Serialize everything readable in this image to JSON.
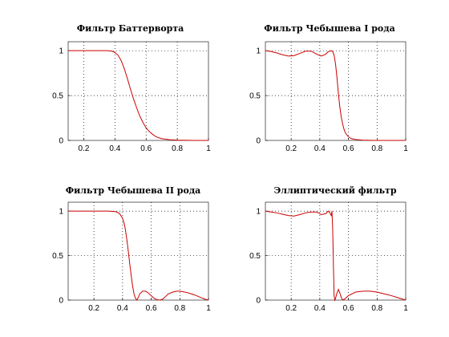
{
  "figure": {
    "background": "#ffffff",
    "line_color": "#cc0000"
  },
  "chart_data": [
    {
      "type": "line",
      "title": "Фильтр Баттерворта",
      "xlim": [
        0.1,
        1.0
      ],
      "ylim": [
        0,
        1.1
      ],
      "xticks": [
        0.2,
        0.4,
        0.6,
        0.8,
        1
      ],
      "xtick_labels": [
        "0.2",
        "0.4",
        "0.6",
        "0.8",
        "1"
      ],
      "yticks": [
        0,
        0.5,
        1
      ],
      "ytick_labels": [
        "0",
        "0.5",
        "1"
      ],
      "grid": true,
      "series": [
        {
          "x": [
            0.1,
            0.2,
            0.3,
            0.35,
            0.38,
            0.4,
            0.42,
            0.44,
            0.46,
            0.48,
            0.5,
            0.52,
            0.54,
            0.56,
            0.58,
            0.6,
            0.62,
            0.64,
            0.66,
            0.68,
            0.7,
            0.75,
            0.8,
            0.9,
            1.0
          ],
          "y": [
            1,
            1,
            1,
            1,
            0.995,
            0.98,
            0.95,
            0.89,
            0.8,
            0.69,
            0.57,
            0.46,
            0.36,
            0.27,
            0.2,
            0.14,
            0.1,
            0.07,
            0.045,
            0.03,
            0.02,
            0.008,
            0.003,
            0.0005,
            0
          ]
        }
      ]
    },
    {
      "type": "line",
      "title": "Фильтр Чебышева I рода",
      "xlim": [
        0.02,
        1.0
      ],
      "ylim": [
        0,
        1.1
      ],
      "xticks": [
        0.2,
        0.4,
        0.6,
        0.8,
        1
      ],
      "xtick_labels": [
        "0.2",
        "0.4",
        "0.6",
        "0.8",
        "1"
      ],
      "yticks": [
        0,
        0.5,
        1
      ],
      "ytick_labels": [
        "0",
        "0.5",
        "1"
      ],
      "grid": true,
      "series": [
        {
          "x": [
            0.02,
            0.06,
            0.1,
            0.14,
            0.18,
            0.22,
            0.26,
            0.3,
            0.34,
            0.38,
            0.41,
            0.44,
            0.46,
            0.48,
            0.49,
            0.5,
            0.51,
            0.52,
            0.53,
            0.54,
            0.55,
            0.56,
            0.57,
            0.58,
            0.6,
            0.62,
            0.65,
            0.7,
            0.75,
            0.8,
            0.9,
            1.0
          ],
          "y": [
            1,
            0.99,
            0.975,
            0.955,
            0.94,
            0.945,
            0.97,
            0.995,
            0.995,
            0.96,
            0.94,
            0.96,
            0.99,
            1.0,
            0.99,
            0.95,
            0.85,
            0.7,
            0.52,
            0.37,
            0.26,
            0.18,
            0.12,
            0.08,
            0.04,
            0.02,
            0.01,
            0.003,
            0.001,
            0.0005,
            0,
            0
          ]
        }
      ]
    },
    {
      "type": "line",
      "title": "Фильтр Чебышева II рода",
      "xlim": [
        0.02,
        1.0
      ],
      "ylim": [
        0,
        1.1
      ],
      "xticks": [
        0.2,
        0.4,
        0.6,
        0.8,
        1
      ],
      "xtick_labels": [
        "0.2",
        "0.4",
        "0.6",
        "0.8",
        "1"
      ],
      "yticks": [
        0,
        0.5,
        1
      ],
      "ytick_labels": [
        "0",
        "0.5",
        "1"
      ],
      "grid": true,
      "series": [
        {
          "x": [
            0.02,
            0.1,
            0.2,
            0.3,
            0.34,
            0.36,
            0.38,
            0.4,
            0.41,
            0.42,
            0.43,
            0.44,
            0.45,
            0.46,
            0.47,
            0.48,
            0.49,
            0.5,
            0.51,
            0.52,
            0.54,
            0.56,
            0.58,
            0.6,
            0.62,
            0.64,
            0.66,
            0.68,
            0.7,
            0.72,
            0.75,
            0.78,
            0.8,
            0.82,
            0.85,
            0.88,
            0.9,
            0.93,
            0.96,
            0.98,
            1.0
          ],
          "y": [
            1,
            1,
            1,
            1,
            0.995,
            0.99,
            0.97,
            0.92,
            0.87,
            0.79,
            0.68,
            0.55,
            0.41,
            0.28,
            0.16,
            0.07,
            0.02,
            0.0,
            0.03,
            0.07,
            0.1,
            0.1,
            0.08,
            0.05,
            0.02,
            0.005,
            0.0,
            0.01,
            0.04,
            0.07,
            0.09,
            0.1,
            0.1,
            0.095,
            0.085,
            0.07,
            0.06,
            0.04,
            0.02,
            0.008,
            0
          ]
        }
      ]
    },
    {
      "type": "line",
      "title": "Эллиптический фильтр",
      "xlim": [
        0.02,
        1.0
      ],
      "ylim": [
        0,
        1.1
      ],
      "xticks": [
        0.2,
        0.4,
        0.6,
        0.8,
        1
      ],
      "xtick_labels": [
        "0.2",
        "0.4",
        "0.6",
        "0.8",
        "1"
      ],
      "yticks": [
        0,
        0.5,
        1
      ],
      "ytick_labels": [
        "0",
        "0.5",
        "1"
      ],
      "grid": true,
      "series": [
        {
          "x": [
            0.02,
            0.06,
            0.1,
            0.14,
            0.18,
            0.22,
            0.26,
            0.3,
            0.34,
            0.38,
            0.41,
            0.44,
            0.46,
            0.47,
            0.48,
            0.485,
            0.49,
            0.495,
            0.5,
            0.505,
            0.51,
            0.52,
            0.53,
            0.54,
            0.55,
            0.56,
            0.58,
            0.6,
            0.65,
            0.7,
            0.75,
            0.8,
            0.85,
            0.9,
            0.95,
            1.0
          ],
          "y": [
            1,
            0.99,
            0.98,
            0.965,
            0.95,
            0.945,
            0.96,
            0.98,
            0.99,
            0.99,
            0.96,
            0.97,
            1.0,
            0.98,
            0.95,
            1.0,
            0.8,
            0.4,
            0.05,
            0.0,
            0.02,
            0.08,
            0.12,
            0.08,
            0.03,
            0.0,
            0.02,
            0.05,
            0.09,
            0.1,
            0.1,
            0.09,
            0.07,
            0.05,
            0.025,
            0
          ]
        }
      ]
    }
  ]
}
